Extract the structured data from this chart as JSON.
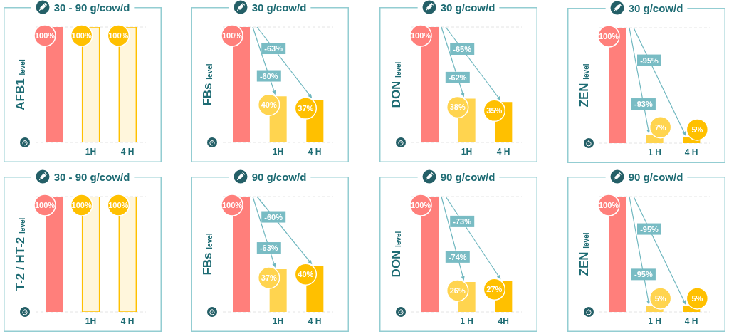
{
  "chart_data": [
    {
      "type": "bar",
      "title": "30 - 90 g/cow/d",
      "ylabel": "AFB1 $_{level}$",
      "categories": [
        null,
        "1H",
        "4 H"
      ],
      "values": [
        100,
        100,
        100
      ],
      "colors": [
        "#ff7f7b",
        "#fff6dc",
        "#fff6dc"
      ],
      "value_labels": [
        "100%",
        "100%",
        "100%"
      ],
      "ylim": [
        0,
        100
      ],
      "grid": "y",
      "tick_labels": "x"
    },
    {
      "type": "bar",
      "title": "30 g/cow/d",
      "ylabel": "FBs $_{level}$",
      "categories": [
        null,
        "1H",
        "4 H"
      ],
      "values": [
        100,
        40,
        37
      ],
      "colors": [
        "#ff7f7b",
        "#ffd44f",
        "#ffc000"
      ],
      "value_labels": [
        "100%",
        "40%",
        "37%"
      ],
      "annotations": [
        "-60%",
        "-63%"
      ],
      "ylim": [
        0,
        100
      ],
      "grid": "y",
      "tick_labels": "x"
    },
    {
      "type": "bar",
      "title": "30 g/cow/d",
      "ylabel": "DON $_{level}$",
      "categories": [
        null,
        "1H",
        "4 H"
      ],
      "values": [
        100,
        38,
        35
      ],
      "colors": [
        "#ff7f7b",
        "#ffd44f",
        "#ffc000"
      ],
      "value_labels": [
        "100%",
        "38%",
        "35%"
      ],
      "annotations": [
        "-62%",
        "-65%"
      ],
      "ylim": [
        0,
        100
      ],
      "grid": "y",
      "tick_labels": "x"
    },
    {
      "type": "bar",
      "title": "30 g/cow/d",
      "ylabel": "ZEN $_{level}$",
      "categories": [
        null,
        "1 H",
        "4 H"
      ],
      "values": [
        100,
        7,
        5
      ],
      "colors": [
        "#ff7f7b",
        "#ffd44f",
        "#ffc000"
      ],
      "value_labels": [
        "100%",
        "7%",
        "5%"
      ],
      "annotations": [
        "-93%",
        "-95%"
      ],
      "ylim": [
        0,
        100
      ],
      "grid": "y",
      "tick_labels": "x"
    },
    {
      "type": "bar",
      "title": "30 - 90 g/cow/d",
      "ylabel": "T-2 / HT-2 $_{level}$",
      "categories": [
        null,
        "1H",
        "4 H"
      ],
      "values": [
        100,
        100,
        100
      ],
      "colors": [
        "#ff7f7b",
        "#fff6dc",
        "#fff6dc"
      ],
      "value_labels": [
        "100%",
        "100%",
        "100%"
      ],
      "ylim": [
        0,
        100
      ],
      "grid": "y",
      "tick_labels": "x"
    },
    {
      "type": "bar",
      "title": "90 g/cow/d",
      "ylabel": "FBs $_{level}$",
      "categories": [
        null,
        "1H",
        "4 H"
      ],
      "values": [
        100,
        37,
        40
      ],
      "colors": [
        "#ff7f7b",
        "#ffd44f",
        "#ffc000"
      ],
      "value_labels": [
        "100%",
        "37%",
        "40%"
      ],
      "annotations": [
        "-63%",
        "-60%"
      ],
      "ylim": [
        0,
        100
      ],
      "grid": "y",
      "tick_labels": "x"
    },
    {
      "type": "bar",
      "title": "90 g/cow/d",
      "ylabel": "DON $_{level}$",
      "categories": [
        null,
        "1 H",
        "4H"
      ],
      "values": [
        100,
        26,
        27
      ],
      "colors": [
        "#ff7f7b",
        "#ffd44f",
        "#ffc000"
      ],
      "value_labels": [
        "100%",
        "26%",
        "27%"
      ],
      "annotations": [
        "-74%",
        "-73%"
      ],
      "ylim": [
        0,
        100
      ],
      "grid": "y",
      "tick_labels": "x"
    },
    {
      "type": "bar",
      "title": "90 g/cow/d",
      "ylabel": "ZEN $_{level}$",
      "categories": [
        null,
        "1 H",
        "4 H"
      ],
      "values": [
        100,
        5,
        5
      ],
      "colors": [
        "#ff7f7b",
        "#ffd44f",
        "#ffc000"
      ],
      "value_labels": [
        "100%",
        "5%",
        "5%"
      ],
      "annotations": [
        "-95%",
        "-95%"
      ],
      "ylim": [
        0,
        100
      ],
      "grid": "y",
      "tick_labels": "x"
    }
  ]
}
